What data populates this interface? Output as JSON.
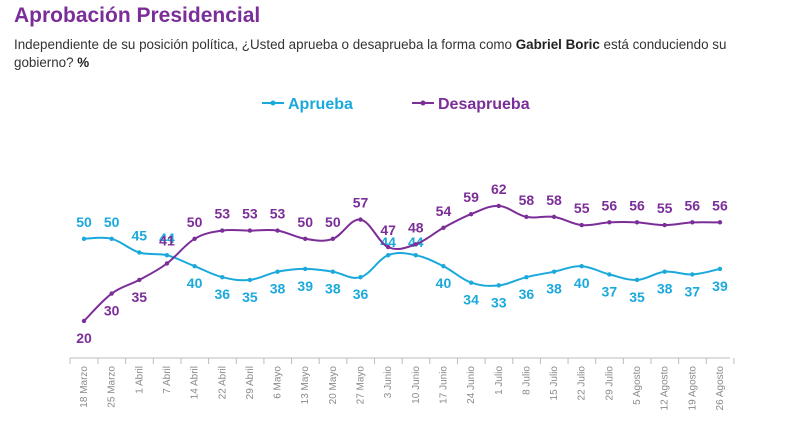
{
  "title": "Aprobación Presidencial",
  "subtitle": {
    "text_before": "Independiente de su posición política, ¿Usted aprueba o desaprueba la forma como ",
    "name": "Gabriel Boric",
    "text_after": " está conduciendo su gobierno? ",
    "unit": "%"
  },
  "colors": {
    "aprueba": "#1ba9dc",
    "desaprueba": "#7b2e98",
    "axis": "#bdbdbd"
  },
  "chart_data": {
    "type": "line",
    "title": "Aprobación Presidencial",
    "categories": [
      "18 Marzo",
      "25 Marzo",
      "1 Abril",
      "7 Abril",
      "14 Abril",
      "22 Abril",
      "29 Abril",
      "6 Mayo",
      "13 Mayo",
      "20 Mayo",
      "27 Mayo",
      "3 Junio",
      "10 Junio",
      "17 Junio",
      "24 Junio",
      "1 Julio",
      "8 Julio",
      "15 Julio",
      "22 Julio",
      "29 Julio",
      "5 Agosto",
      "12 Agosto",
      "19 Agosto",
      "26 Agosto"
    ],
    "series": [
      {
        "name": "Aprueba",
        "values": [
          50,
          50,
          45,
          44,
          40,
          36,
          35,
          38,
          39,
          38,
          36,
          44,
          44,
          40,
          34,
          33,
          36,
          38,
          40,
          37,
          35,
          38,
          37,
          39
        ]
      },
      {
        "name": "Desaprueba",
        "values": [
          20,
          30,
          35,
          41,
          50,
          53,
          53,
          53,
          50,
          50,
          57,
          47,
          48,
          54,
          59,
          62,
          58,
          58,
          55,
          56,
          56,
          55,
          56,
          56
        ]
      }
    ],
    "legend_position": "top",
    "grid": false,
    "ylim": [
      10,
      75
    ]
  }
}
